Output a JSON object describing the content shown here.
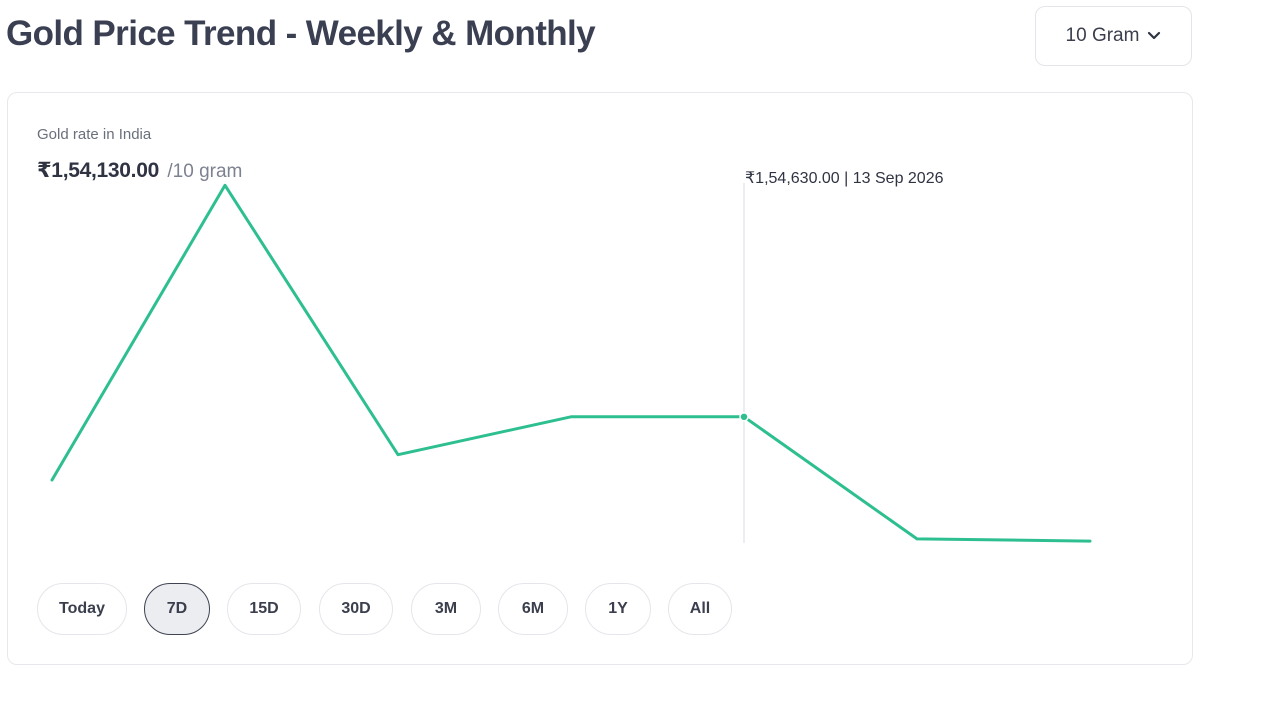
{
  "header": {
    "title": "Gold Price Trend - Weekly & Monthly",
    "unit_select": "10 Gram"
  },
  "card": {
    "subtitle": "Gold rate in India",
    "price": "₹1,54,130.00",
    "price_unit": "/10 gram",
    "tooltip": "₹1,54,630.00 | 13 Sep 2026"
  },
  "ranges": [
    {
      "label": "Today",
      "active": false
    },
    {
      "label": "7D",
      "active": true
    },
    {
      "label": "15D",
      "active": false
    },
    {
      "label": "30D",
      "active": false
    },
    {
      "label": "3M",
      "active": false
    },
    {
      "label": "6M",
      "active": false
    },
    {
      "label": "1Y",
      "active": false
    },
    {
      "label": "All",
      "active": false
    }
  ],
  "colors": {
    "line": "#2ebf91",
    "crosshair": "#d9dbe0"
  },
  "chart_data": {
    "type": "line",
    "series": [
      {
        "values": [
          154330,
          155730,
          154450,
          154630,
          154630,
          154050,
          154040
        ]
      }
    ],
    "highlight_index": 4,
    "ylim": [
      153950,
      155850
    ]
  }
}
